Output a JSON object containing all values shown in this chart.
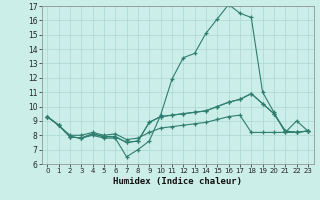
{
  "xlabel": "Humidex (Indice chaleur)",
  "x": [
    0,
    1,
    2,
    3,
    4,
    5,
    6,
    7,
    8,
    9,
    10,
    11,
    12,
    13,
    14,
    15,
    16,
    17,
    18,
    19,
    20,
    21,
    22,
    23
  ],
  "series": [
    [
      9.3,
      8.7,
      7.9,
      7.8,
      8.0,
      7.8,
      7.8,
      6.5,
      7.0,
      7.6,
      9.4,
      11.9,
      13.4,
      13.7,
      15.1,
      16.1,
      17.1,
      16.5,
      16.2,
      11.0,
      9.6,
      8.2,
      9.0,
      8.3
    ],
    [
      9.3,
      8.7,
      7.9,
      7.8,
      8.1,
      7.9,
      7.9,
      7.5,
      7.6,
      8.9,
      9.3,
      9.4,
      9.5,
      9.6,
      9.7,
      10.0,
      10.3,
      10.5,
      10.9,
      10.2,
      9.5,
      8.3,
      8.2,
      8.3
    ],
    [
      9.3,
      8.7,
      7.9,
      7.8,
      8.1,
      7.9,
      7.9,
      7.5,
      7.6,
      8.9,
      9.3,
      9.4,
      9.5,
      9.6,
      9.7,
      10.0,
      10.3,
      10.5,
      10.9,
      10.2,
      9.5,
      8.3,
      8.2,
      8.3
    ],
    [
      9.3,
      8.7,
      8.0,
      8.0,
      8.2,
      8.0,
      8.1,
      7.7,
      7.8,
      8.2,
      8.5,
      8.6,
      8.7,
      8.8,
      8.9,
      9.1,
      9.3,
      9.4,
      8.2,
      8.2,
      8.2,
      8.2,
      8.2,
      8.3
    ]
  ],
  "line_color": "#2e7d6e",
  "bg_color": "#cceee8",
  "grid_color": "#aad8d0",
  "ylim": [
    6,
    17
  ],
  "yticks": [
    6,
    7,
    8,
    9,
    10,
    11,
    12,
    13,
    14,
    15,
    16,
    17
  ],
  "xlim": [
    -0.5,
    23.5
  ]
}
